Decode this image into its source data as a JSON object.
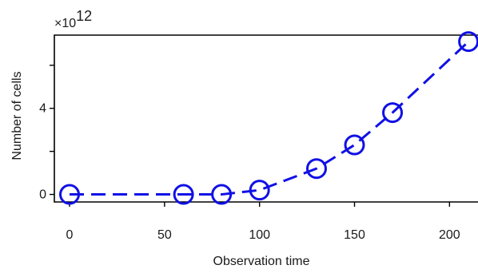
{
  "chart_data": {
    "type": "line",
    "title": "",
    "xlabel": "Observation time",
    "ylabel": "Number of cells",
    "y_multiplier": {
      "prefix": "×10",
      "exponent": "12"
    },
    "xlim": [
      -8,
      215
    ],
    "ylim": [
      -0.35,
      7.4
    ],
    "xticks": [
      0,
      50,
      100,
      150,
      200
    ],
    "xtick_labels": [
      "0",
      "50",
      "100",
      "150",
      "200"
    ],
    "yticks": [
      0,
      4
    ],
    "ytick_labels": [
      "0",
      "4"
    ],
    "yticks_unlabeled": [
      2,
      6
    ],
    "grid": false,
    "legend": "none",
    "line_style": "dashed",
    "marker": "open-circle",
    "color": "#1010e6",
    "series": [
      {
        "x": [
          0,
          60,
          80,
          100,
          130,
          150,
          170,
          210
        ],
        "y": [
          0,
          0,
          0,
          0.2,
          1.2,
          2.3,
          3.8,
          7.1
        ]
      }
    ]
  }
}
